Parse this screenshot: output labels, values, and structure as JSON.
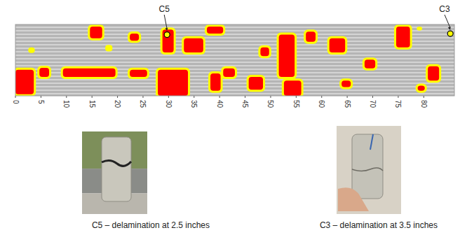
{
  "chart_data": {
    "type": "delamination_map",
    "xlim": [
      0,
      86
    ],
    "xticks": [
      0,
      5,
      10,
      15,
      20,
      25,
      30,
      35,
      40,
      45,
      50,
      55,
      60,
      65,
      70,
      75,
      80
    ],
    "ylim": [
      0,
      14
    ],
    "tick_labels": "x",
    "regions": [
      {
        "x": [
          0,
          3.6
        ],
        "y": [
          8.9,
          13.7
        ],
        "color": "#ff0000"
      },
      {
        "x": [
          4.7,
          6.6
        ],
        "y": [
          8.5,
          10.3
        ],
        "color": "#ff0000"
      },
      {
        "x": [
          9.3,
          19.6
        ],
        "y": [
          8.6,
          10.3
        ],
        "color": "#ff0000"
      },
      {
        "x": [
          14.6,
          17
        ],
        "y": [
          0.4,
          2.7
        ],
        "color": "#ff0000"
      },
      {
        "x": [
          17.6,
          19
        ],
        "y": [
          4,
          5.3
        ],
        "color": "#ffff00"
      },
      {
        "x": [
          22.4,
          24.2
        ],
        "y": [
          1.8,
          3.2
        ],
        "color": "#ff0000"
      },
      {
        "x": [
          22.4,
          25.8
        ],
        "y": [
          8.9,
          10.3
        ],
        "color": "#ff0000"
      },
      {
        "x": [
          27.9,
          33.8
        ],
        "y": [
          8.9,
          14
        ],
        "color": "#ff0000"
      },
      {
        "x": [
          28.8,
          31
        ],
        "y": [
          1,
          5.5
        ],
        "color": "#ff0000"
      },
      {
        "x": [
          33,
          36.8
        ],
        "y": [
          2.7,
          5.5
        ],
        "color": "#ff0000"
      },
      {
        "x": [
          37.5,
          40.7
        ],
        "y": [
          0.4,
          1.8
        ],
        "color": "#ff0000"
      },
      {
        "x": [
          40.7,
          43
        ],
        "y": [
          8.6,
          10.3
        ],
        "color": "#ff0000"
      },
      {
        "x": [
          45.7,
          48.5
        ],
        "y": [
          10.3,
          12.8
        ],
        "color": "#ff0000"
      },
      {
        "x": [
          51.6,
          54.7
        ],
        "y": [
          2,
          10.3
        ],
        "color": "#ff0000"
      },
      {
        "x": [
          52.6,
          56
        ],
        "y": [
          11,
          14
        ],
        "color": "#ff0000"
      },
      {
        "x": [
          56.9,
          58.8
        ],
        "y": [
          1.4,
          3.4
        ],
        "color": "#ff0000"
      },
      {
        "x": [
          61.5,
          64.6
        ],
        "y": [
          2.7,
          5.5
        ],
        "color": "#ff0000"
      },
      {
        "x": [
          63.9,
          65.7
        ],
        "y": [
          11,
          12.3
        ],
        "color": "#ff0000"
      },
      {
        "x": [
          68.4,
          70.5
        ],
        "y": [
          6.9,
          8.6
        ],
        "color": "#ff0000"
      },
      {
        "x": [
          74.6,
          77.3
        ],
        "y": [
          0.4,
          4.5
        ],
        "color": "#ff0000"
      },
      {
        "x": [
          80.8,
          83
        ],
        "y": [
          8.2,
          11
        ],
        "color": "#ff0000"
      },
      {
        "x": [
          78.8,
          80.2
        ],
        "y": [
          12,
          13
        ],
        "color": "#ff0000"
      },
      {
        "x": [
          2.5,
          3.8
        ],
        "y": [
          4.5,
          5.6
        ],
        "color": "#ffff00"
      },
      {
        "x": [
          78.6,
          79.7
        ],
        "y": [
          0.4,
          1.2
        ],
        "color": "#ffff00"
      },
      {
        "x": [
          38.2,
          40.2
        ],
        "y": [
          9.6,
          13
        ],
        "color": "#ff0000"
      },
      {
        "x": [
          48,
          49.7
        ],
        "y": [
          4.5,
          6.2
        ],
        "color": "#ff0000"
      }
    ],
    "cores": [
      {
        "label": "C5",
        "x": 29.7,
        "y": 2.0,
        "caption": "C5 – delamination at 2.5 inches"
      },
      {
        "label": "C3",
        "x": 85.2,
        "y": 1.8,
        "caption": "C3 – delamination at 3.5 inches"
      }
    ]
  }
}
